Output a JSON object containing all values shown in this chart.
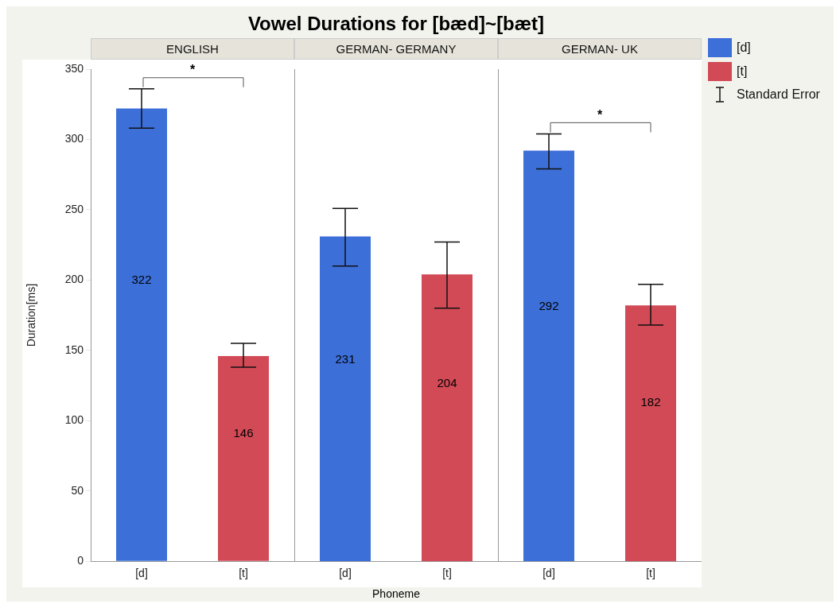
{
  "chart_data": [
    {
      "type": "bar",
      "title": "Vowel Durations for [bæd]~[bæt]",
      "subtitle": "ENGLISH",
      "ylabel": "Duration[ms]",
      "categories": [
        "[d]",
        "[t]"
      ],
      "series": [
        {
          "color": "#3d6fd9",
          "values": [
            322,
            null
          ],
          "errors": [
            [
              308,
              336
            ],
            null
          ]
        },
        {
          "color": "#d24a56",
          "values": [
            null,
            146
          ],
          "errors": [
            null,
            [
              138,
              155
            ]
          ]
        }
      ],
      "ylim": [
        0,
        350
      ],
      "yticks": [
        0,
        50,
        100,
        150,
        200,
        250,
        300,
        350
      ],
      "grid": false,
      "data_labels": true,
      "annotations": [
        "*"
      ]
    },
    {
      "type": "bar",
      "subtitle": "GERMAN- GERMANY",
      "xlabel": "Phoneme",
      "categories": [
        "[d]",
        "[t]"
      ],
      "series": [
        {
          "color": "#3d6fd9",
          "values": [
            231,
            null
          ],
          "errors": [
            [
              210,
              251
            ],
            null
          ]
        },
        {
          "color": "#d24a56",
          "values": [
            null,
            204
          ],
          "errors": [
            null,
            [
              180,
              227
            ]
          ]
        }
      ],
      "ylim": [
        0,
        350
      ],
      "yticks": [
        0,
        50,
        100,
        150,
        200,
        250,
        300,
        350
      ],
      "tick_labels": "x",
      "grid": false,
      "data_labels": true
    },
    {
      "type": "bar",
      "subtitle": "GERMAN- UK",
      "categories": [
        "[d]",
        "[t]"
      ],
      "series": [
        {
          "name": "[d]",
          "color": "#3d6fd9",
          "values": [
            292,
            null
          ],
          "errors": [
            [
              279,
              304
            ],
            null
          ]
        },
        {
          "name": "[t]",
          "color": "#d24a56",
          "values": [
            null,
            182
          ],
          "errors": [
            null,
            [
              168,
              197
            ]
          ]
        }
      ],
      "ylim": [
        0,
        350
      ],
      "yticks": [
        0,
        50,
        100,
        150,
        200,
        250,
        300,
        350
      ],
      "tick_labels": "x",
      "grid": false,
      "legend": "right",
      "data_labels": true,
      "annotations": [
        "*",
        "Standard Error"
      ]
    }
  ]
}
